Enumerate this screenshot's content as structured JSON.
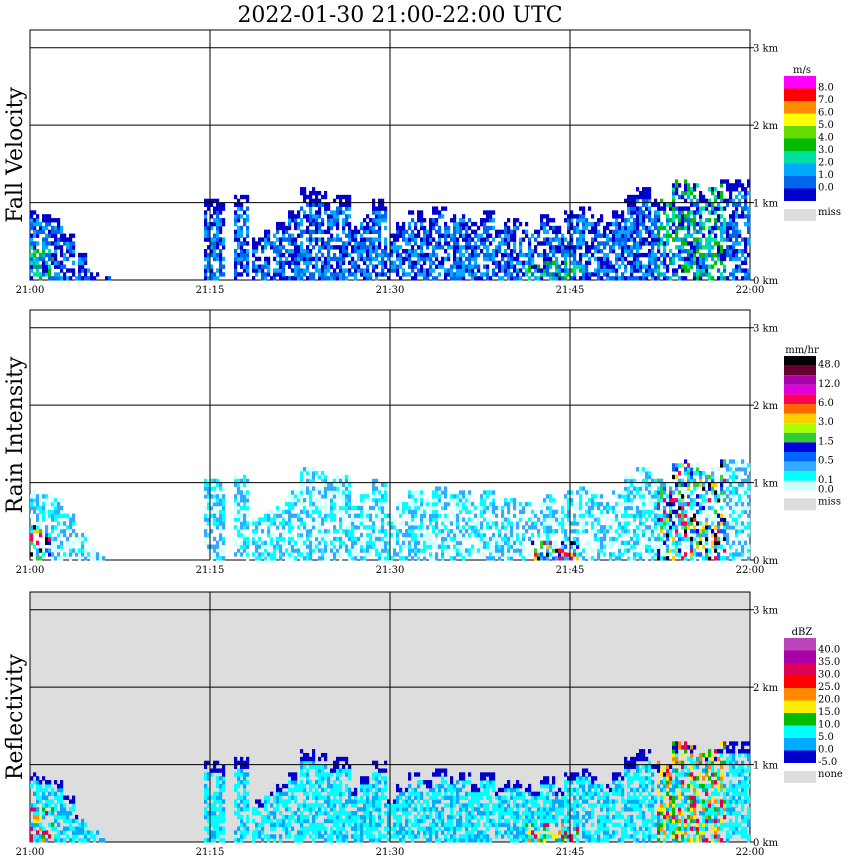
{
  "chart_data": {
    "type": "heatmap",
    "title": "2022-01-30   21:00-22:00 UTC",
    "x_ticks": [
      "21:00",
      "21:15",
      "21:30",
      "21:45",
      "22:00"
    ],
    "x_range_minutes": [
      0,
      60
    ],
    "height_ticks": [
      "3 km",
      "2 km",
      "1 km",
      "0 km"
    ],
    "y_range_km": [
      0,
      3.1
    ],
    "panels": [
      {
        "id": "fall-velocity",
        "ylabel": "Fall Velocity",
        "unit": "m/s",
        "background": "#ffffff",
        "legend": [
          {
            "label": "8.0",
            "color": "#ff00ff"
          },
          {
            "label": "7.0",
            "color": "#ff0000"
          },
          {
            "label": "6.0",
            "color": "#ff8c00"
          },
          {
            "label": "5.0",
            "color": "#ffff00"
          },
          {
            "label": "4.0",
            "color": "#66dd00"
          },
          {
            "label": "3.0",
            "color": "#00bb00"
          },
          {
            "label": "2.0",
            "color": "#00e0a0"
          },
          {
            "label": "1.0",
            "color": "#00aaff"
          },
          {
            "label": "0.0",
            "color": "#0066ee"
          },
          {
            "label": "",
            "color": "#0000cc"
          }
        ],
        "miss": {
          "label": "miss",
          "color": "#dddddd"
        }
      },
      {
        "id": "rain-intensity",
        "ylabel": "Rain Intensity",
        "unit": "mm/hr",
        "background": "#ffffff",
        "legend": [
          {
            "label": "48.0",
            "color": "#000000"
          },
          {
            "label": "",
            "color": "#660033"
          },
          {
            "label": "12.0",
            "color": "#aa00aa"
          },
          {
            "label": "",
            "color": "#dd00dd"
          },
          {
            "label": "6.0",
            "color": "#ff0055"
          },
          {
            "label": "",
            "color": "#ff6600"
          },
          {
            "label": "3.0",
            "color": "#ffcc00"
          },
          {
            "label": "",
            "color": "#aaff00"
          },
          {
            "label": "1.5",
            "color": "#33cc33"
          },
          {
            "label": "",
            "color": "#0000dd"
          },
          {
            "label": "0.5",
            "color": "#0066ff"
          },
          {
            "label": "",
            "color": "#33aaff"
          },
          {
            "label": "0.1",
            "color": "#00ffff"
          },
          {
            "label": "0.0",
            "color": "#ccffff"
          }
        ],
        "miss": {
          "label": "miss",
          "color": "#dddddd"
        }
      },
      {
        "id": "reflectivity",
        "ylabel": "Reflectivity",
        "unit": "dBZ",
        "background": "#dddddd",
        "legend": [
          {
            "label": "40.0",
            "color": "#bb44bb"
          },
          {
            "label": "35.0",
            "color": "#aa00aa"
          },
          {
            "label": "30.0",
            "color": "#dd0055"
          },
          {
            "label": "25.0",
            "color": "#ff0000"
          },
          {
            "label": "20.0",
            "color": "#ff8800"
          },
          {
            "label": "15.0",
            "color": "#ffee00"
          },
          {
            "label": "10.0",
            "color": "#00bb00"
          },
          {
            "label": "5.0",
            "color": "#00ffff"
          },
          {
            "label": "0.0",
            "color": "#00aaff"
          },
          {
            "label": "-5.0",
            "color": "#0000cc"
          }
        ],
        "miss": {
          "label": "none",
          "color": "#dddddd"
        }
      }
    ],
    "echo_tops_km": [
      {
        "t": 0,
        "top": 0.9
      },
      {
        "t": 1,
        "top": 0.85
      },
      {
        "t": 2,
        "top": 0.8
      },
      {
        "t": 3,
        "top": 0.55
      },
      {
        "t": 4,
        "top": 0.35
      },
      {
        "t": 5,
        "top": 0.15
      },
      {
        "t": 6,
        "top": 0.05
      },
      {
        "t": 15,
        "top": 1.05
      },
      {
        "t": 15.5,
        "top": 1.0
      },
      {
        "t": 17.5,
        "top": 1.1
      },
      {
        "t": 19,
        "top": 0.5
      },
      {
        "t": 20,
        "top": 0.65
      },
      {
        "t": 21,
        "top": 0.75
      },
      {
        "t": 22,
        "top": 0.9
      },
      {
        "t": 23,
        "top": 1.2
      },
      {
        "t": 24,
        "top": 1.15
      },
      {
        "t": 25,
        "top": 1.05
      },
      {
        "t": 26,
        "top": 1.1
      },
      {
        "t": 27,
        "top": 0.7
      },
      {
        "t": 28,
        "top": 0.85
      },
      {
        "t": 29,
        "top": 1.05
      },
      {
        "t": 30,
        "top": 0.55
      },
      {
        "t": 31,
        "top": 0.75
      },
      {
        "t": 32,
        "top": 0.9
      },
      {
        "t": 33,
        "top": 0.8
      },
      {
        "t": 34,
        "top": 0.95
      },
      {
        "t": 35,
        "top": 0.85
      },
      {
        "t": 36,
        "top": 0.9
      },
      {
        "t": 37,
        "top": 0.75
      },
      {
        "t": 38,
        "top": 0.9
      },
      {
        "t": 39,
        "top": 0.7
      },
      {
        "t": 40,
        "top": 0.8
      },
      {
        "t": 41,
        "top": 0.75
      },
      {
        "t": 42,
        "top": 0.65
      },
      {
        "t": 43,
        "top": 0.85
      },
      {
        "t": 44,
        "top": 0.7
      },
      {
        "t": 45,
        "top": 0.9
      },
      {
        "t": 46,
        "top": 0.95
      },
      {
        "t": 47,
        "top": 0.85
      },
      {
        "t": 48,
        "top": 0.75
      },
      {
        "t": 49,
        "top": 0.9
      },
      {
        "t": 50,
        "top": 1.1
      },
      {
        "t": 51,
        "top": 1.2
      },
      {
        "t": 52,
        "top": 1.05
      },
      {
        "t": 53,
        "top": 1.0
      },
      {
        "t": 54,
        "top": 1.3
      },
      {
        "t": 55,
        "top": 1.25
      },
      {
        "t": 56,
        "top": 1.15
      },
      {
        "t": 57,
        "top": 1.2
      },
      {
        "t": 58,
        "top": 1.3
      },
      {
        "t": 59,
        "top": 1.3
      },
      {
        "t": 60,
        "top": 1.3
      }
    ]
  }
}
